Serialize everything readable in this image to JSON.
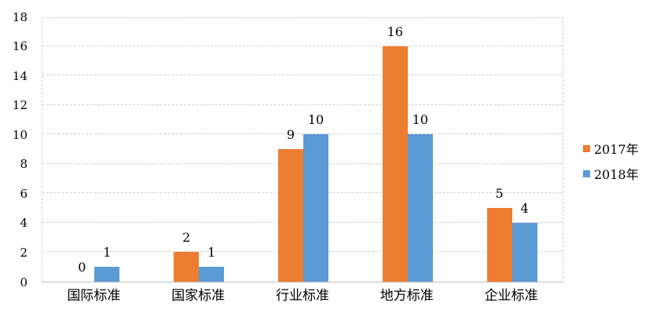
{
  "chart_data": {
    "type": "bar",
    "categories": [
      "国际标准",
      "国家标准",
      "行业标准",
      "地方标准",
      "企业标准"
    ],
    "series": [
      {
        "name": "2017年",
        "color": "#ED7D31",
        "values": [
          0,
          2,
          9,
          16,
          5
        ]
      },
      {
        "name": "2018年",
        "color": "#5B9BD5",
        "values": [
          1,
          1,
          10,
          10,
          4
        ]
      }
    ],
    "title": "",
    "xlabel": "",
    "ylabel": "",
    "ylim": [
      0,
      18
    ],
    "ytick_step": 2,
    "ytick_labels": [
      "0",
      "2",
      "4",
      "6",
      "8",
      "10",
      "12",
      "14",
      "16",
      "18"
    ],
    "grid": true,
    "value_labels": true,
    "legend_position": "right"
  },
  "colors": {
    "grid": "#cfcfcf",
    "axis": "#bfbfbf",
    "text": "#000000",
    "background": "#ffffff"
  }
}
